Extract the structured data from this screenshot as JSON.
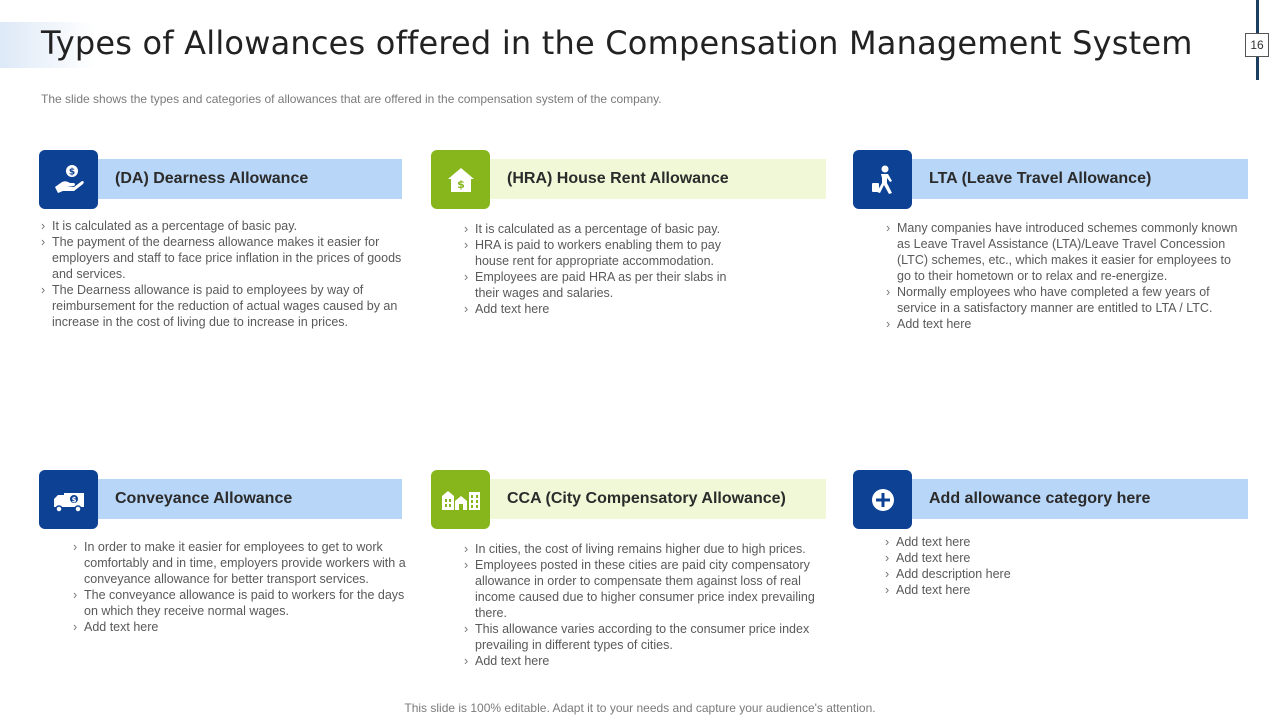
{
  "header": {
    "title": "Types of Allowances offered in the Compensation Management System",
    "page_number": "16",
    "subtitle": "The slide shows the types and categories of allowances that are offered  in the compensation system of the company."
  },
  "colors": {
    "blue": "#0d4193",
    "green": "#86b61c",
    "blue_bar": "#b8d6f7",
    "green_bar": "#f1f8d8"
  },
  "cards": [
    {
      "title": "(DA) Dearness Allowance",
      "icon": "hand-coin-icon",
      "points": [
        "It is calculated as a percentage  of basic pay.",
        "The  payment  of the dearness  allowance  makes it easier for employers  and  staff to face  price inflation in the prices  of goods  and services.",
        "The Dearness  allowance  is paid to employees  by way of reimbursement  for the reduction  of actual wages  caused  by an increase  in the cost of living  due to increase  in prices."
      ]
    },
    {
      "title": "(HRA) House Rent Allowance",
      "icon": "house-dollar-icon",
      "points": [
        "It is calculated as a percentage  of basic pay.",
        "HRA is paid to workers  enabling  them to pay house rent for appropriate  accommodation.",
        "Employees are paid HRA as per their slabs in their wages  and  salaries.",
        "Add text here"
      ]
    },
    {
      "title": "LTA (Leave Travel Allowance)",
      "icon": "traveler-icon",
      "points": [
        "Many companies  have introduced  schemes commonly known as Leave Travel  Assistance (LTA)/Leave  Travel Concession (LTC)  schemes, etc., which makes it easier for employees to go to their hometown  or to relax and  re-energize.",
        "Normally employees  who have completed  a few  years of service  in a satisfactory manner are entitled to LTA / LTC.",
        "Add text here"
      ]
    },
    {
      "title": "Conveyance Allowance",
      "icon": "truck-dollar-icon",
      "points": [
        "In order to make it easier for employees to get to work comfortably and in time, employers  provide  workers with a conveyance  allowance for better transport services.",
        "The conveyance  allowance  is paid to workers  for the days on which they receive  normal wages.",
        "Add text here"
      ]
    },
    {
      "title": "CCA (City Compensatory Allowance)",
      "icon": "city-buildings-icon",
      "points": [
        "In cities, the cost of living  remains  higher  due to high prices.",
        "Employees posted in these cities are paid city compensatory allowance  in order to compensate them against loss of real income caused due to higher  consumer price index prevailing  there.",
        "This allowance varies  according to the consumer price index prevailing  in different  types of cities.",
        "Add text here"
      ]
    },
    {
      "title": "Add allowance category here",
      "icon": "plus-circle-icon",
      "points": [
        "Add text here",
        "Add text here",
        "Add description here",
        "Add text here"
      ]
    }
  ],
  "footer": "This slide is 100% editable. Adapt it to your needs and capture your audience's attention."
}
